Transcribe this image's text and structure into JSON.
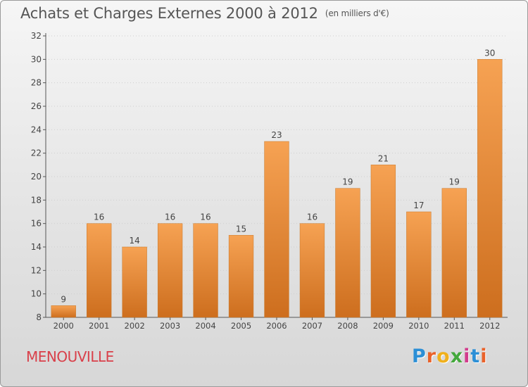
{
  "header": {
    "title": "Achats et Charges Externes 2000 à 2012",
    "unit": "(en milliers d'€)"
  },
  "footer": {
    "commune": "MENOUVILLE",
    "logo": "Proxiti",
    "logo_colors": [
      "#2c8fd6",
      "#e9622a",
      "#f0b01c",
      "#44a83c",
      "#d23c8c",
      "#2c8fd6",
      "#e9622a"
    ]
  },
  "colors": {
    "bar_top": "#f6a253",
    "bar_bottom": "#cd6e1e",
    "axis": "#555555",
    "grid": "#cfcfcf",
    "commune": "#d9404a"
  },
  "chart_data": {
    "type": "bar",
    "title": "Achats et Charges Externes 2000 à 2012",
    "subtitle": "(en milliers d'€)",
    "xlabel": "",
    "ylabel": "",
    "categories": [
      "2000",
      "2001",
      "2002",
      "2003",
      "2004",
      "2005",
      "2006",
      "2007",
      "2008",
      "2009",
      "2010",
      "2011",
      "2012"
    ],
    "values": [
      9,
      16,
      14,
      16,
      16,
      15,
      23,
      16,
      19,
      21,
      17,
      19,
      30
    ],
    "ylim": [
      8,
      32
    ],
    "yticks": [
      8,
      10,
      12,
      14,
      16,
      18,
      20,
      22,
      24,
      26,
      28,
      30,
      32
    ],
    "grid": true,
    "legend": "none"
  }
}
